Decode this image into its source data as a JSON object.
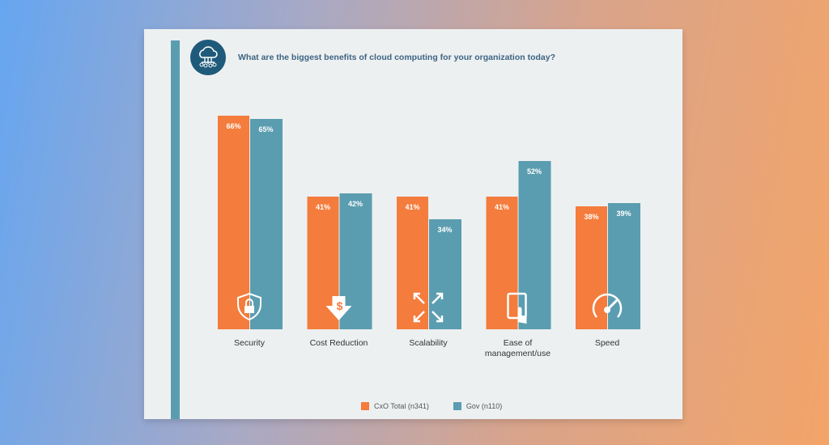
{
  "title": "What are the biggest benefits of cloud computing for your organization today?",
  "colors": {
    "cxo": "#f47c3c",
    "gov": "#5b9db0"
  },
  "chart_data": {
    "type": "bar",
    "title": "What are the biggest benefits of cloud computing for your organization today?",
    "categories": [
      "Security",
      "Cost Reduction",
      "Scalability",
      "Ease of management/use",
      "Speed"
    ],
    "category_lines": [
      [
        "Security"
      ],
      [
        "Cost Reduction"
      ],
      [
        "Scalability"
      ],
      [
        "Ease of",
        "management/use"
      ],
      [
        "Speed"
      ]
    ],
    "category_icons": [
      "shield-lock-icon",
      "dollar-down-arrow-icon",
      "expand-arrows-icon",
      "tablet-touch-icon",
      "speedometer-icon"
    ],
    "series": [
      {
        "name": "CxO Total (n341)",
        "values": [
          66,
          41,
          41,
          41,
          38
        ]
      },
      {
        "name": "Gov (n110)",
        "values": [
          65,
          42,
          34,
          52,
          39
        ]
      }
    ],
    "value_suffix": "%",
    "ylim": [
      0,
      70
    ],
    "legend": "bottom-center",
    "grid": false
  }
}
